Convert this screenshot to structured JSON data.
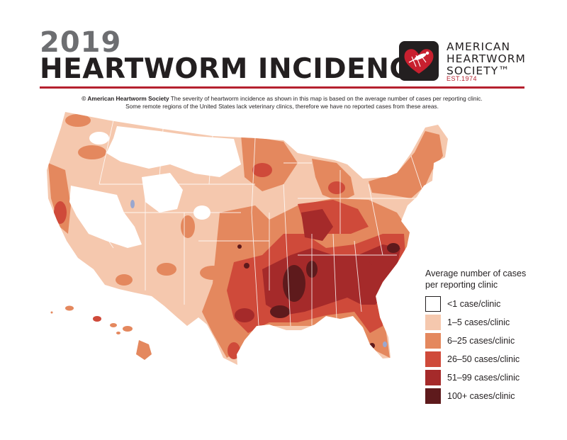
{
  "header": {
    "year": "2019",
    "title": "HEARTWORM INCIDENCE"
  },
  "organization": {
    "name_lines": [
      "AMERICAN",
      "HEARTWORM",
      "SOCIETY™"
    ],
    "established": "EST.1974",
    "logo_icon": "heart-mosquito-icon"
  },
  "caption": {
    "copyright": "© American Heartworm Society",
    "line1": " The severity of heartworm incidence as shown in this map is based on the average number of cases per reporting clinic.",
    "line2": "Some remote regions of the United States lack veterinary clinics, therefore we have no reported cases from these areas."
  },
  "legend": {
    "title_lines": [
      "Average number of cases",
      "per reporting clinic"
    ],
    "items": [
      {
        "label": "<1 case/clinic",
        "color": "#ffffff",
        "border": "#231f20"
      },
      {
        "label": "1–5 cases/clinic",
        "color": "#f5c8ae"
      },
      {
        "label": "6–25 cases/clinic",
        "color": "#e4885e"
      },
      {
        "label": "26–50 cases/clinic",
        "color": "#cf4a3a"
      },
      {
        "label": "51–99 cases/clinic",
        "color": "#a52a2a"
      },
      {
        "label": "100+ cases/clinic",
        "color": "#5e1a1c"
      }
    ]
  },
  "colors": {
    "accent_red": "#b5202e",
    "title_dark": "#231f20",
    "year_gray": "#6d6e71",
    "water": "#9aa7cf"
  }
}
